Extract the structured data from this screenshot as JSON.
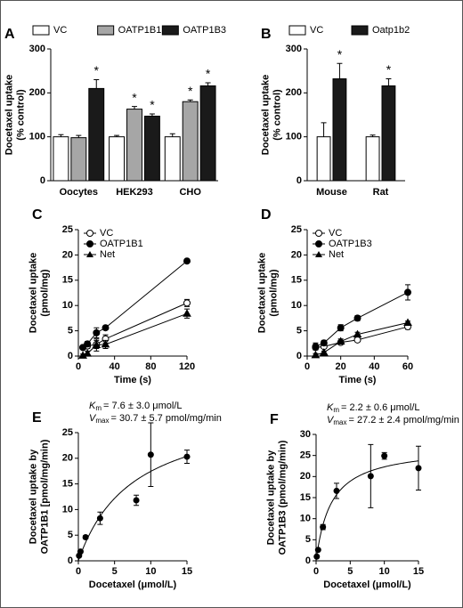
{
  "chart_data": [
    {
      "panel": "A",
      "type": "bar",
      "y_label": [
        "Docetaxel uptake",
        "(% control)"
      ],
      "categories": [
        "Oocytes",
        "HEK293",
        "CHO"
      ],
      "series": [
        {
          "name": "VC",
          "color": "#ffffff",
          "values": [
            100,
            100,
            100
          ],
          "errors": [
            5,
            3,
            7
          ],
          "annotations": [
            null,
            null,
            null
          ]
        },
        {
          "name": "OATP1B1",
          "color": "#a6a6a6",
          "values": [
            98,
            163,
            180
          ],
          "errors": [
            5,
            6,
            4
          ],
          "annotations": [
            null,
            "*",
            "*"
          ]
        },
        {
          "name": "OATP1B3",
          "color": "#1a1a1a",
          "values": [
            210,
            147,
            216
          ],
          "errors": [
            20,
            5,
            7
          ],
          "annotations": [
            "*",
            "*",
            "*"
          ]
        }
      ],
      "ylim": [
        0,
        300
      ],
      "yticks": [
        0,
        100,
        200,
        300
      ]
    },
    {
      "panel": "B",
      "type": "bar",
      "y_label": [
        "Docetaxel uptake",
        "(% control)"
      ],
      "categories": [
        "Mouse",
        "Rat"
      ],
      "series": [
        {
          "name": "VC",
          "color": "#ffffff",
          "values": [
            100,
            100
          ],
          "errors": [
            32,
            4
          ],
          "annotations": [
            null,
            null
          ]
        },
        {
          "name": "Oatp1b2",
          "color": "#1a1a1a",
          "values": [
            232,
            216
          ],
          "errors": [
            35,
            16
          ],
          "annotations": [
            "*",
            "*"
          ]
        }
      ],
      "ylim": [
        0,
        300
      ],
      "yticks": [
        0,
        100,
        200,
        300
      ]
    },
    {
      "panel": "C",
      "type": "line",
      "y_label": [
        "Docetaxel uptake",
        "(pmol/mg)"
      ],
      "x_label": "Time (s)",
      "x": [
        5,
        10,
        20,
        30,
        120
      ],
      "series": [
        {
          "name": "VC",
          "marker": "open-circle",
          "color": "#000000",
          "values": [
            1.7,
            2.0,
            2.3,
            3.4,
            10.5
          ],
          "errors": [
            0.3,
            0.5,
            0.8,
            0.8,
            0.7
          ]
        },
        {
          "name": "OATP1B1",
          "marker": "filled-circle",
          "color": "#000000",
          "values": [
            1.7,
            2.4,
            4.6,
            5.6,
            18.8
          ],
          "errors": [
            0.3,
            0.5,
            1.0,
            0.3,
            0.3
          ]
        },
        {
          "name": "Net",
          "marker": "triangle",
          "color": "#000000",
          "values": [
            0.1,
            0.5,
            2.2,
            2.3,
            8.4
          ],
          "errors": [
            0.3,
            0.5,
            1.2,
            0.8,
            0.9
          ]
        }
      ],
      "xlim": [
        0,
        120
      ],
      "xticks": [
        0,
        40,
        80,
        120
      ],
      "ylim": [
        0,
        25
      ],
      "yticks": [
        0,
        5,
        10,
        15,
        20,
        25
      ]
    },
    {
      "panel": "D",
      "type": "line",
      "y_label": [
        "Docetaxel uptake",
        "(pmol/mg)"
      ],
      "x_label": "Time (s)",
      "x": [
        5,
        10,
        20,
        30,
        60
      ],
      "series": [
        {
          "name": "VC",
          "marker": "open-circle",
          "color": "#000000",
          "values": [
            1.7,
            1.9,
            2.7,
            3.2,
            5.8
          ],
          "errors": [
            0.3,
            0.3,
            0.4,
            0.4,
            0.5
          ]
        },
        {
          "name": "OATP1B3",
          "marker": "filled-circle",
          "color": "#000000",
          "values": [
            1.9,
            2.6,
            5.6,
            7.5,
            12.6
          ],
          "errors": [
            0.7,
            0.5,
            0.6,
            0.5,
            1.5
          ]
        },
        {
          "name": "Net",
          "marker": "triangle",
          "color": "#000000",
          "values": [
            0.2,
            0.7,
            2.9,
            4.3,
            6.6
          ],
          "errors": [
            0.3,
            0.3,
            0.5,
            0.4,
            0.3
          ]
        }
      ],
      "xlim": [
        0,
        60
      ],
      "xticks": [
        0,
        20,
        40,
        60
      ],
      "ylim": [
        0,
        25
      ],
      "yticks": [
        0,
        5,
        10,
        15,
        20,
        25
      ]
    },
    {
      "panel": "E",
      "type": "scatter",
      "y_label": [
        "Docetaxel uptake by",
        "OATP1B1 [pmol/mg/min)"
      ],
      "x_label": "Docetaxel (μmol/L)",
      "x": [
        0.1,
        0.3,
        1,
        3,
        8,
        10,
        15
      ],
      "values": [
        1.0,
        1.8,
        4.6,
        8.3,
        11.8,
        20.7,
        20.3
      ],
      "errors": [
        0,
        0,
        0.3,
        1.2,
        1.0,
        6.2,
        1.3
      ],
      "fit": {
        "km": 7.6,
        "vmax": 30.7
      },
      "annotations": [
        {
          "symbol": "K",
          "subscript": "m",
          "text": "= 7.6 ± 3.0 μmol/L"
        },
        {
          "symbol": "V",
          "subscript": "max",
          "text": "= 30.7 ± 5.7 pmol/mg/min"
        }
      ],
      "xlim": [
        0,
        15
      ],
      "xticks": [
        0,
        5,
        10,
        15
      ],
      "ylim": [
        0,
        25
      ],
      "yticks": [
        0,
        5,
        10,
        15,
        20,
        25
      ]
    },
    {
      "panel": "F",
      "type": "scatter",
      "y_label": [
        "Docetaxel uptake by",
        "OATP1B3 (pmol/mg/min)"
      ],
      "x_label": "Docetaxel (μmol/L)",
      "x": [
        0.1,
        0.3,
        1,
        3,
        8,
        10,
        15
      ],
      "values": [
        1.0,
        2.6,
        8.0,
        16.6,
        20.1,
        24.9,
        22.0
      ],
      "errors": [
        0,
        0,
        0.6,
        1.8,
        7.5,
        0.8,
        5.2
      ],
      "fit": {
        "km": 2.2,
        "vmax": 27.2
      },
      "annotations": [
        {
          "symbol": "K",
          "subscript": "m",
          "text": "= 2.2 ± 0.6 μmol/L"
        },
        {
          "symbol": "V",
          "subscript": "max",
          "text": "= 27.2 ± 2.4 pmol/mg/min"
        }
      ],
      "xlim": [
        0,
        15
      ],
      "xticks": [
        0,
        5,
        10,
        15
      ],
      "ylim": [
        0,
        30
      ],
      "yticks": [
        0,
        5,
        10,
        15,
        20,
        25,
        30
      ]
    }
  ]
}
